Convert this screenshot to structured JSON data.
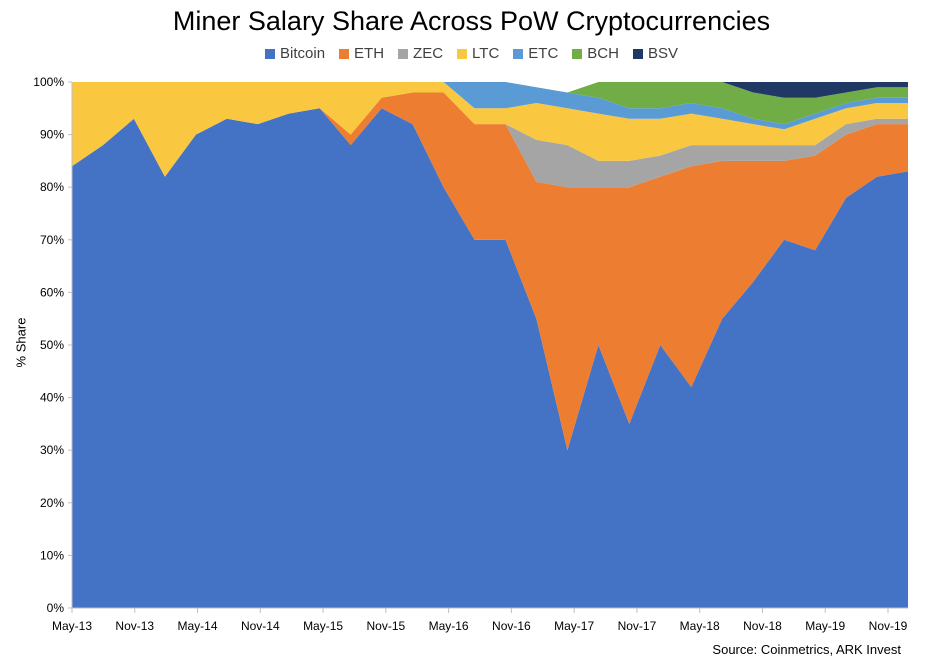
{
  "chart_data": {
    "type": "area",
    "title": "Miner Salary Share Across PoW Cryptocurrencies",
    "ylabel": "% Share",
    "xlabel": "",
    "ylim": [
      0,
      100
    ],
    "y_ticks": [
      "0%",
      "10%",
      "20%",
      "30%",
      "40%",
      "50%",
      "60%",
      "70%",
      "80%",
      "90%",
      "100%"
    ],
    "x_ticks": [
      "May-13",
      "Nov-13",
      "May-14",
      "Nov-14",
      "May-15",
      "Nov-15",
      "May-16",
      "Nov-16",
      "May-17",
      "Nov-17",
      "May-18",
      "Nov-18",
      "May-19",
      "Nov-19"
    ],
    "legend_position": "top-center",
    "stacked": true,
    "x": [
      "May-13",
      "Aug-13",
      "Nov-13",
      "Feb-14",
      "May-14",
      "Aug-14",
      "Nov-14",
      "Feb-15",
      "May-15",
      "Aug-15",
      "Nov-15",
      "Feb-16",
      "May-16",
      "Aug-16",
      "Nov-16",
      "Feb-17",
      "May-17",
      "Aug-17",
      "Nov-17",
      "Feb-18",
      "May-18",
      "Aug-18",
      "Nov-18",
      "Feb-19",
      "May-19",
      "Aug-19",
      "Nov-19",
      "Jan-20"
    ],
    "series": [
      {
        "name": "Bitcoin",
        "color": "#4472C4",
        "values": [
          84,
          88,
          93,
          82,
          90,
          93,
          92,
          94,
          95,
          88,
          95,
          92,
          80,
          70,
          70,
          55,
          30,
          50,
          35,
          50,
          42,
          55,
          62,
          70,
          68,
          78,
          82,
          83
        ]
      },
      {
        "name": "ETH",
        "color": "#ED7D31",
        "values": [
          0,
          0,
          0,
          0,
          0,
          0,
          0,
          0,
          0,
          2,
          2,
          6,
          18,
          22,
          22,
          26,
          50,
          30,
          45,
          32,
          42,
          30,
          23,
          15,
          18,
          12,
          10,
          9
        ]
      },
      {
        "name": "ZEC",
        "color": "#A5A5A5",
        "values": [
          0,
          0,
          0,
          0,
          0,
          0,
          0,
          0,
          0,
          0,
          0,
          0,
          0,
          0,
          0,
          8,
          8,
          5,
          5,
          4,
          4,
          3,
          3,
          3,
          2,
          2,
          1,
          1
        ]
      },
      {
        "name": "LTC",
        "color": "#F9C840",
        "values": [
          16,
          12,
          7,
          18,
          10,
          7,
          8,
          6,
          5,
          10,
          3,
          2,
          2,
          3,
          3,
          7,
          7,
          9,
          8,
          7,
          6,
          5,
          4,
          3,
          5,
          3,
          3,
          3
        ]
      },
      {
        "name": "ETC",
        "color": "#5B9BD5",
        "values": [
          0,
          0,
          0,
          0,
          0,
          0,
          0,
          0,
          0,
          0,
          0,
          0,
          0,
          5,
          5,
          3,
          3,
          3,
          2,
          2,
          2,
          2,
          1,
          1,
          1,
          1,
          1,
          1
        ]
      },
      {
        "name": "BCH",
        "color": "#70AD47",
        "values": [
          0,
          0,
          0,
          0,
          0,
          0,
          0,
          0,
          0,
          0,
          0,
          0,
          0,
          0,
          0,
          0,
          0,
          3,
          5,
          5,
          4,
          5,
          5,
          5,
          3,
          2,
          2,
          2
        ]
      },
      {
        "name": "BSV",
        "color": "#203864",
        "values": [
          0,
          0,
          0,
          0,
          0,
          0,
          0,
          0,
          0,
          0,
          0,
          0,
          0,
          0,
          0,
          0,
          0,
          0,
          0,
          0,
          0,
          0,
          2,
          3,
          3,
          2,
          1,
          1
        ]
      }
    ]
  },
  "source_text": "Source: Coinmetrics, ARK Invest"
}
